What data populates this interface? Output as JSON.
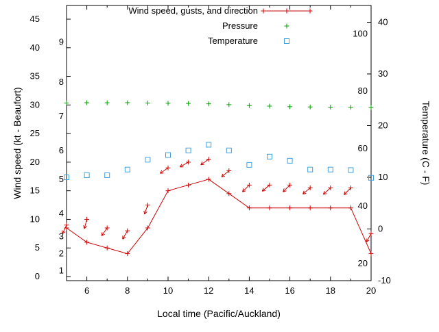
{
  "chart_data": {
    "type": "line",
    "title": "",
    "xlabel": "Local time (Pacific/Auckland)",
    "ylabel_left": "Wind speed (kt - Beaufort)",
    "ylabel_right": "Temperature (C - F)",
    "grid": false,
    "background_color": "#ffffff",
    "axis_color": "#000000",
    "x_range": [
      5,
      20
    ],
    "x_ticks_major": [
      6,
      8,
      10,
      12,
      14,
      16,
      18,
      20
    ],
    "x_ticks_minor": [
      5,
      7,
      9,
      11,
      13,
      15,
      17,
      19
    ],
    "left_range": [
      0,
      45
    ],
    "left_ticks": [
      0,
      5,
      10,
      15,
      20,
      25,
      30,
      35,
      40,
      45
    ],
    "right_range": [
      -10,
      40
    ],
    "right_ticks": [
      -10,
      0,
      10,
      20,
      30,
      40
    ],
    "beaufort_scale_labels": [
      {
        "text": "1",
        "kt": 1
      },
      {
        "text": "2",
        "kt": 4
      },
      {
        "text": "3",
        "kt": 7
      },
      {
        "text": "4",
        "kt": 11
      },
      {
        "text": "5",
        "kt": 17
      },
      {
        "text": "6",
        "kt": 22
      },
      {
        "text": "7",
        "kt": 28
      },
      {
        "text": "8",
        "kt": 34
      },
      {
        "text": "9",
        "kt": 41
      }
    ],
    "fahrenheit_scale_labels": [
      {
        "text": "20",
        "f": 20
      },
      {
        "text": "40",
        "f": 40
      },
      {
        "text": "60",
        "f": 60
      },
      {
        "text": "80",
        "f": 80
      },
      {
        "text": "100",
        "f": 100
      }
    ],
    "legend": [
      {
        "label": "Wind speed, gusts, and direction",
        "marker": "line-plus",
        "color": "#cc0000"
      },
      {
        "label": "Pressure",
        "marker": "plus",
        "color": "#00a000"
      },
      {
        "label": "Temperature",
        "marker": "square",
        "color": "#3fa0e0"
      }
    ],
    "x_hours": [
      5,
      6,
      7,
      8,
      9,
      10,
      11,
      12,
      13,
      14,
      15,
      16,
      17,
      18,
      19,
      20
    ],
    "series": [
      {
        "name": "Wind speed (kt)",
        "style": "line-plus",
        "axis": "left",
        "color": "#cc0000",
        "values": [
          8.5,
          6,
          5,
          4,
          8.5,
          15,
          16,
          17,
          14.5,
          12,
          12,
          12,
          12,
          12,
          12,
          4
        ]
      },
      {
        "name": "Gusts (kt) with wind direction",
        "style": "vector-plus",
        "axis": "left",
        "color": "#cc0000",
        "values": [
          9,
          10,
          8.5,
          8,
          12.5,
          19,
          20,
          20.5,
          18.5,
          16,
          16,
          16,
          15.5,
          15.5,
          15.5,
          7.5
        ],
        "direction_deg": [
          205,
          195,
          215,
          210,
          200,
          235,
          240,
          235,
          230,
          225,
          230,
          225,
          230,
          228,
          225,
          210
        ]
      },
      {
        "name": "Pressure (inHg)",
        "style": "plus",
        "axis": "left",
        "color": "#00a000",
        "values": [
          30.35,
          30.4,
          30.38,
          30.4,
          30.33,
          30.3,
          30.27,
          30.2,
          30.05,
          29.9,
          29.8,
          29.7,
          29.65,
          29.62,
          29.6,
          29.55
        ]
      },
      {
        "name": "Temperature (C)",
        "style": "square",
        "axis": "right",
        "color": "#3fa0e0",
        "values": [
          10,
          10.4,
          10.4,
          11.5,
          13.4,
          14.3,
          15.2,
          16.3,
          15.2,
          12.4,
          14,
          13.2,
          11.5,
          11.5,
          11.4,
          9.9
        ]
      }
    ]
  }
}
